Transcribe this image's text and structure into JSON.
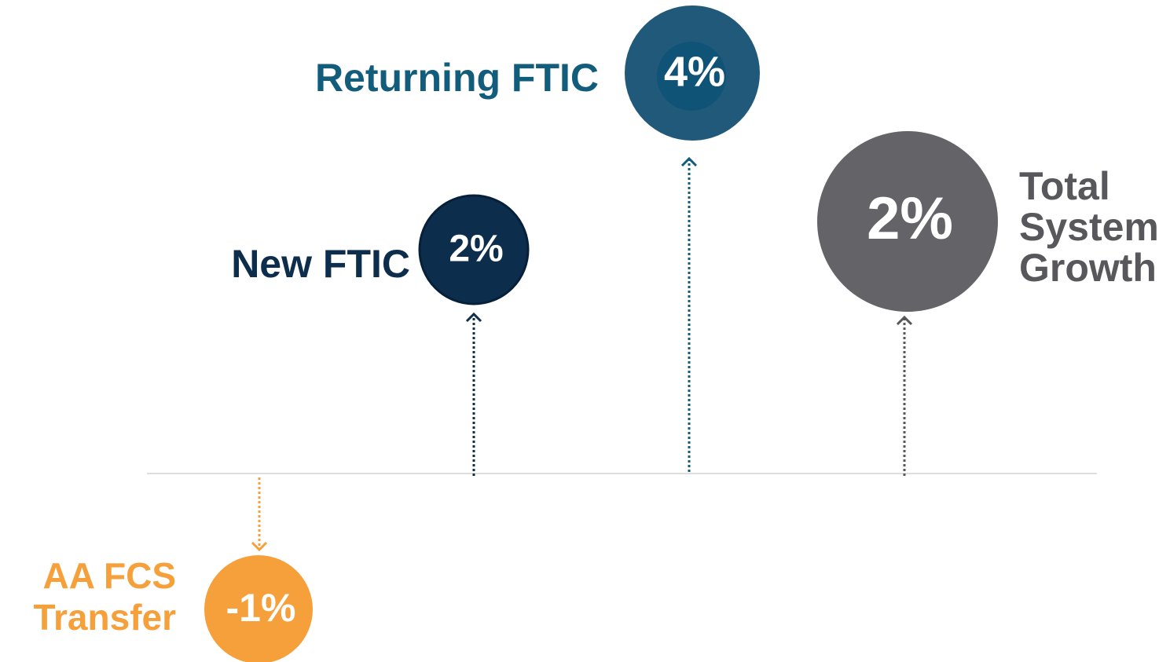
{
  "items": [
    {
      "label_lines": [
        "AA FCS",
        "Transfer"
      ],
      "value": "-1%"
    },
    {
      "label_lines": [
        "New FTIC"
      ],
      "value": "2%"
    },
    {
      "label_lines": [
        "Returning FTIC"
      ],
      "value": "4%"
    },
    {
      "label_lines": [
        "Total",
        "System",
        "Growth"
      ],
      "value": "2%"
    }
  ]
}
